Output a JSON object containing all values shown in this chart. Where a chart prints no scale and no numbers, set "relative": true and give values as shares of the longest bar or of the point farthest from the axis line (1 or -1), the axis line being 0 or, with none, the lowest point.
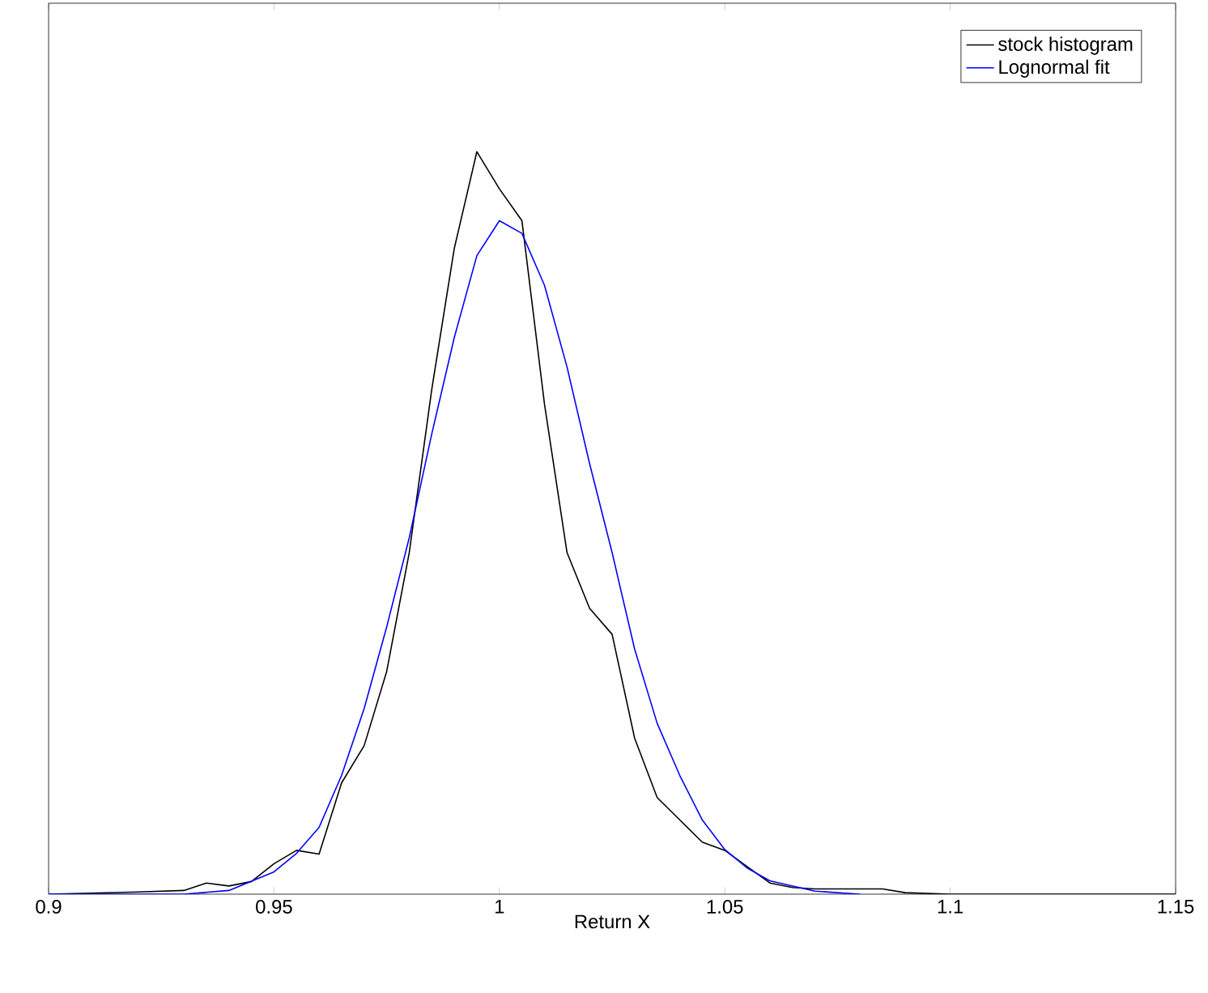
{
  "chart_data": {
    "type": "line",
    "xlabel": "Return X",
    "relative": true,
    "xlim": [
      0.9,
      1.15
    ],
    "xticks": [
      0.9,
      0.95,
      1,
      1.05,
      1.1,
      1.15
    ],
    "legend": "top right",
    "grid": false,
    "marker": "none",
    "line_style": "solid",
    "series": [
      {
        "name": "stock histogram",
        "color": "#000000",
        "x": [
          0.9,
          0.92,
          0.93,
          0.935,
          0.94,
          0.945,
          0.95,
          0.955,
          0.96,
          0.965,
          0.97,
          0.975,
          0.98,
          0.985,
          0.99,
          0.995,
          1.0,
          1.005,
          1.01,
          1.015,
          1.02,
          1.025,
          1.03,
          1.035,
          1.04,
          1.045,
          1.05,
          1.055,
          1.06,
          1.065,
          1.07,
          1.08,
          1.085,
          1.09,
          1.1,
          1.15
        ],
        "values": [
          0,
          0.003,
          0.005,
          0.015,
          0.011,
          0.017,
          0.041,
          0.059,
          0.054,
          0.15,
          0.2,
          0.3,
          0.46,
          0.68,
          0.87,
          1.0,
          0.95,
          0.907,
          0.66,
          0.46,
          0.385,
          0.35,
          0.21,
          0.13,
          0.1,
          0.07,
          0.059,
          0.037,
          0.015,
          0.009,
          0.007,
          0.007,
          0.007,
          0.002,
          0,
          0
        ]
      },
      {
        "name": "Lognormal fit",
        "color": "#0000ff",
        "x": [
          0.9,
          0.93,
          0.94,
          0.95,
          0.955,
          0.96,
          0.965,
          0.97,
          0.975,
          0.98,
          0.985,
          0.99,
          0.995,
          1.0,
          1.005,
          1.01,
          1.015,
          1.02,
          1.025,
          1.03,
          1.035,
          1.04,
          1.045,
          1.05,
          1.055,
          1.06,
          1.07,
          1.08
        ],
        "values": [
          0,
          0,
          0.005,
          0.03,
          0.055,
          0.09,
          0.16,
          0.25,
          0.36,
          0.48,
          0.62,
          0.75,
          0.86,
          0.907,
          0.89,
          0.82,
          0.71,
          0.58,
          0.46,
          0.33,
          0.23,
          0.16,
          0.1,
          0.06,
          0.035,
          0.018,
          0.004,
          0
        ]
      }
    ]
  }
}
